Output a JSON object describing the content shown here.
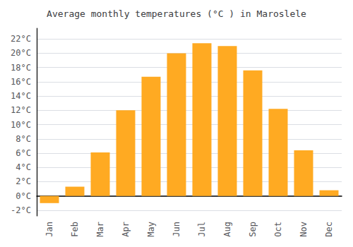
{
  "chart_data": {
    "type": "bar",
    "title": "Average monthly temperatures (°C ) in Maroslele",
    "categories": [
      "Jan",
      "Feb",
      "Mar",
      "Apr",
      "May",
      "Jun",
      "Jul",
      "Aug",
      "Sep",
      "Oct",
      "Nov",
      "Dec"
    ],
    "values": [
      -1.0,
      1.3,
      6.1,
      12.0,
      16.7,
      20.0,
      21.4,
      21.0,
      17.6,
      12.2,
      6.4,
      0.8
    ],
    "color": "#FFAA22",
    "ylim": [
      -2.8,
      23.5
    ],
    "yticks": [
      {
        "value": -2,
        "label": "-2°C"
      },
      {
        "value": 0,
        "label": "0°C"
      },
      {
        "value": 2,
        "label": "2°C"
      },
      {
        "value": 4,
        "label": "4°C"
      },
      {
        "value": 6,
        "label": "6°C"
      },
      {
        "value": 8,
        "label": "8°C"
      },
      {
        "value": 10,
        "label": "10°C"
      },
      {
        "value": 12,
        "label": "12°C"
      },
      {
        "value": 14,
        "label": "14°C"
      },
      {
        "value": 16,
        "label": "16°C"
      },
      {
        "value": 18,
        "label": "18°C"
      },
      {
        "value": 20,
        "label": "20°C"
      },
      {
        "value": 22,
        "label": "22°C"
      }
    ],
    "grid": true
  }
}
